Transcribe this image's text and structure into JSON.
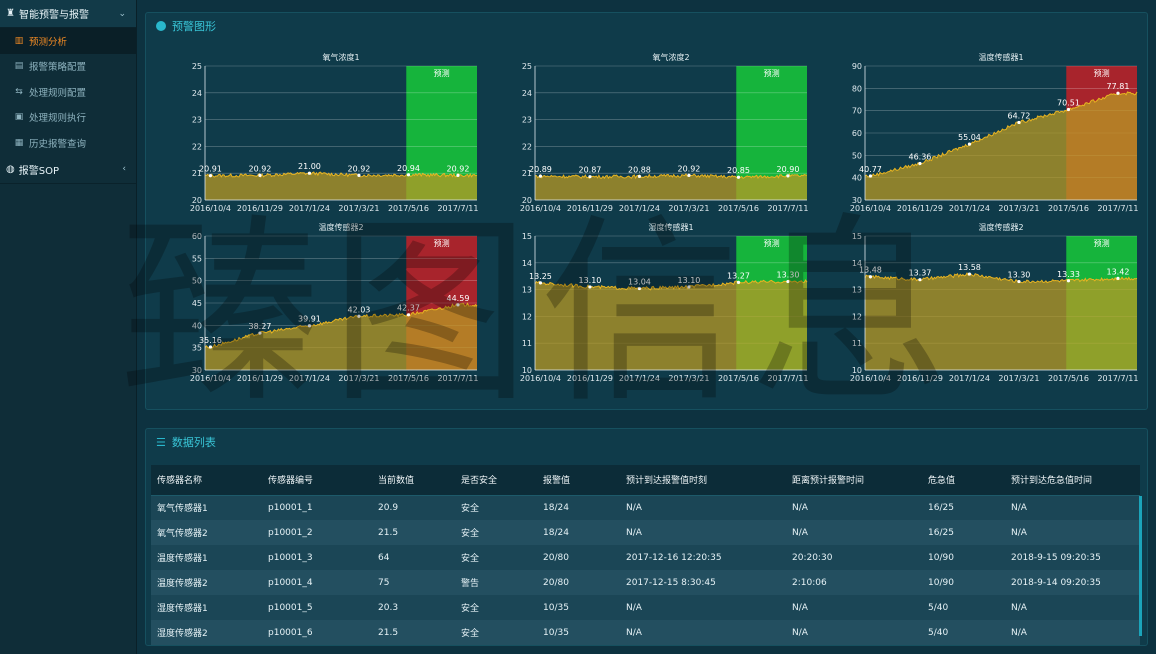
{
  "sidebar": {
    "group1_label": "智能预警与报警",
    "group1_caret": "⌄",
    "items": [
      {
        "label": "预测分析",
        "icon": "chart-icon",
        "active": true
      },
      {
        "label": "报警策略配置",
        "icon": "doc-icon",
        "active": false
      },
      {
        "label": "处理规则配置",
        "icon": "rule-icon",
        "active": false
      },
      {
        "label": "处理规则执行",
        "icon": "exec-icon",
        "active": false
      },
      {
        "label": "历史报警查询",
        "icon": "history-icon",
        "active": false
      }
    ],
    "group2_label": "报警SOP",
    "group2_caret": "‹"
  },
  "panel1": {
    "title": "预警图形"
  },
  "panel2": {
    "title": "数据列表"
  },
  "watermark": "臻图信息",
  "colors": {
    "line": "#e8b420",
    "area_fill": "#b89a24",
    "forecast_green": "#16b43c",
    "forecast_red": "#a8242c",
    "forecast_orange": "#d98628",
    "forecast_yellowgreen": "#a8b428"
  },
  "chart_data": [
    {
      "type": "area",
      "title": "氧气浓度1",
      "forecast_label": "预测",
      "forecast_color": "green",
      "x_ticks": [
        "2016/10/4",
        "2016/11/29",
        "2017/1/24",
        "2017/3/21",
        "2017/5/16",
        "2017/7/11"
      ],
      "y_ticks": [
        "20",
        "21",
        "22",
        "23",
        "24",
        "25"
      ],
      "ylim": [
        20,
        25
      ],
      "points": [
        20.91,
        20.92,
        21.0,
        20.92,
        20.94,
        20.92
      ],
      "point_labels": [
        "20.91",
        "20.92",
        "21.00",
        "20.92",
        "20.94",
        "20.92"
      ]
    },
    {
      "type": "area",
      "title": "氧气浓度2",
      "forecast_label": "预测",
      "forecast_color": "green",
      "x_ticks": [
        "2016/10/4",
        "2016/11/29",
        "2017/1/24",
        "2017/3/21",
        "2017/5/16",
        "2017/7/11"
      ],
      "y_ticks": [
        "20",
        "21",
        "22",
        "23",
        "24",
        "25"
      ],
      "ylim": [
        20,
        25
      ],
      "points": [
        20.89,
        20.87,
        20.88,
        20.92,
        20.85,
        20.9
      ],
      "point_labels": [
        "20.89",
        "20.87",
        "20.88",
        "20.92",
        "20.85",
        "20.90"
      ]
    },
    {
      "type": "area",
      "title": "温度传感器1",
      "forecast_label": "预测",
      "forecast_color": "red",
      "x_ticks": [
        "2016/10/4",
        "2016/11/29",
        "2017/1/24",
        "2017/3/21",
        "2017/5/16",
        "2017/7/11"
      ],
      "y_ticks": [
        "30",
        "40",
        "50",
        "60",
        "70",
        "80",
        "90"
      ],
      "ylim": [
        30,
        90
      ],
      "points": [
        40.77,
        46.36,
        55.04,
        64.72,
        70.51,
        77.81
      ],
      "point_labels": [
        "40.77",
        "46.36",
        "55.04",
        "64.72",
        "70.51",
        "77.81"
      ]
    },
    {
      "type": "area",
      "title": "温度传感器2",
      "forecast_label": "预测",
      "forecast_color": "red",
      "x_ticks": [
        "2016/10/4",
        "2016/11/29",
        "2017/1/24",
        "2017/3/21",
        "2017/5/16",
        "2017/7/11"
      ],
      "y_ticks": [
        "30",
        "35",
        "40",
        "45",
        "50",
        "55",
        "60"
      ],
      "ylim": [
        30,
        60
      ],
      "points": [
        35.16,
        38.27,
        39.91,
        42.03,
        42.37,
        44.59
      ],
      "point_labels": [
        "35.16",
        "38.27",
        "39.91",
        "42.03",
        "42.37",
        "44.59"
      ]
    },
    {
      "type": "area",
      "title": "湿度传感器1",
      "forecast_label": "预测",
      "forecast_color": "green",
      "x_ticks": [
        "2016/10/4",
        "2016/11/29",
        "2017/1/24",
        "2017/3/21",
        "2017/5/16",
        "2017/7/11"
      ],
      "y_ticks": [
        "10",
        "11",
        "12",
        "13",
        "14",
        "15"
      ],
      "ylim": [
        10,
        15
      ],
      "points": [
        13.25,
        13.1,
        13.04,
        13.1,
        13.27,
        13.3
      ],
      "point_labels": [
        "13.25",
        "13.10",
        "13.04",
        "13.10",
        "13.27",
        "13.30"
      ]
    },
    {
      "type": "area",
      "title": "温度传感器2",
      "forecast_label": "预测",
      "forecast_color": "green",
      "x_ticks": [
        "2016/10/4",
        "2016/11/29",
        "2017/1/24",
        "2017/3/21",
        "2017/5/16",
        "2017/7/11"
      ],
      "y_ticks": [
        "10",
        "11",
        "12",
        "13",
        "14",
        "15"
      ],
      "ylim": [
        10,
        15
      ],
      "points": [
        13.48,
        13.37,
        13.58,
        13.3,
        13.33,
        13.42
      ],
      "point_labels": [
        "13.48",
        "13.37",
        "13.58",
        "13.30",
        "13.33",
        "13.42"
      ]
    }
  ],
  "table": {
    "headers": [
      "传感器名称",
      "传感器编号",
      "当前数值",
      "是否安全",
      "报警值",
      "预计到达报警值时刻",
      "距离预计报警时间",
      "危急值",
      "预计到达危急值时间"
    ],
    "rows": [
      [
        "氧气传感器1",
        "p10001_1",
        "20.9",
        "安全",
        "18/24",
        "N/A",
        "N/A",
        "16/25",
        "N/A"
      ],
      [
        "氧气传感器2",
        "p10001_2",
        "21.5",
        "安全",
        "18/24",
        "N/A",
        "N/A",
        "16/25",
        "N/A"
      ],
      [
        "温度传感器1",
        "p10001_3",
        "64",
        "安全",
        "20/80",
        "2017-12-16 12:20:35",
        "20:20:30",
        "10/90",
        "2018-9-15 09:20:35"
      ],
      [
        "温度传感器2",
        "p10001_4",
        "75",
        "警告",
        "20/80",
        "2017-12-15 8:30:45",
        "2:10:06",
        "10/90",
        "2018-9-14 09:20:35"
      ],
      [
        "湿度传感器1",
        "p10001_5",
        "20.3",
        "安全",
        "10/35",
        "N/A",
        "N/A",
        "5/40",
        "N/A"
      ],
      [
        "湿度传感器2",
        "p10001_6",
        "21.5",
        "安全",
        "10/35",
        "N/A",
        "N/A",
        "5/40",
        "N/A"
      ]
    ]
  }
}
